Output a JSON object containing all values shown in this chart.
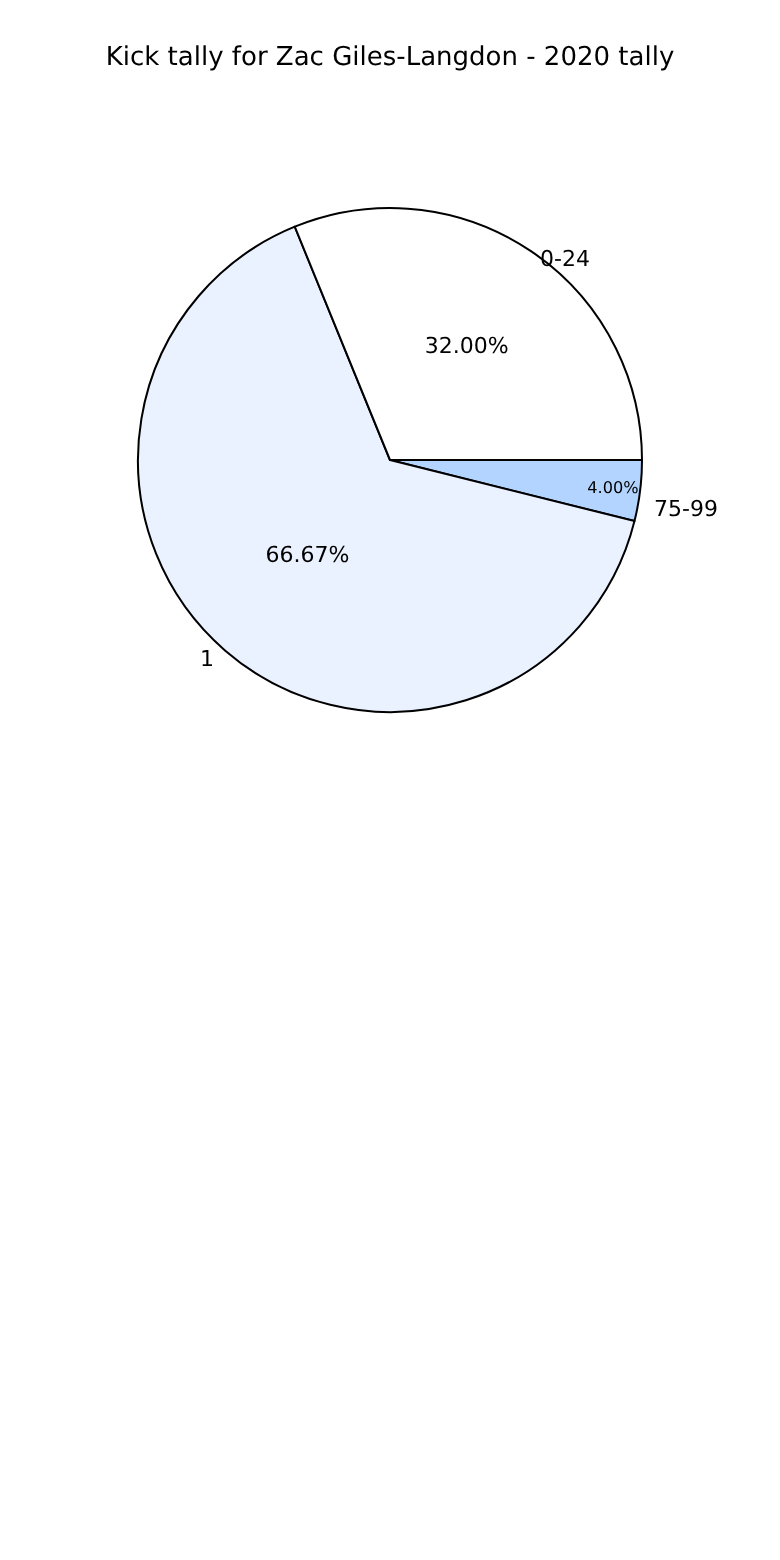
{
  "chart_data": {
    "type": "pie",
    "title": "Kick tally for Zac Giles-Langdon - 2020 tally",
    "categories": [
      "75-99",
      "1",
      "0-24"
    ],
    "values": [
      4.0,
      66.67,
      32.0
    ],
    "value_labels": [
      "4.00%",
      "66.67%",
      "32.00%"
    ],
    "colors": [
      "#b3d4ff",
      "#eaf1ff",
      "#ffffff"
    ]
  }
}
